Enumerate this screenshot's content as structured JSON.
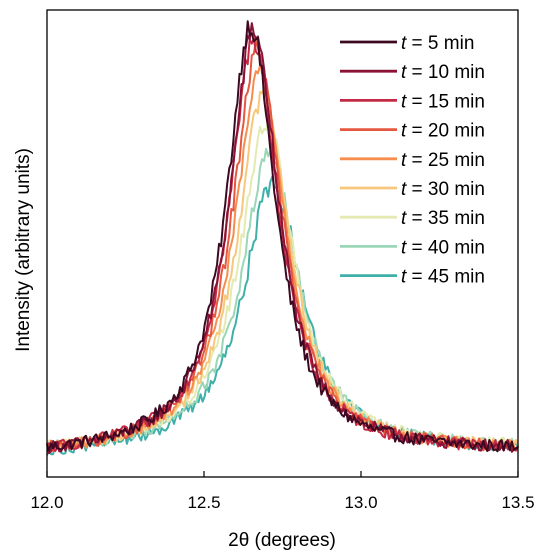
{
  "chart_data": {
    "type": "line",
    "xlabel": "2θ (degrees)",
    "ylabel": "Intensity (arbitrary units)",
    "xlim": [
      12.0,
      13.5
    ],
    "ylim": [
      0,
      1
    ],
    "x_ticks": [
      "12.0",
      "12.5",
      "13.0",
      "13.5"
    ],
    "y_ticks_labeled": false,
    "grid": false,
    "legend_position": "top-right",
    "legend_var": "t",
    "series": [
      {
        "name": "= 5 min",
        "color": "#3b0a22",
        "peak_x": 12.65,
        "peak_y": 0.96,
        "baseline": 0.045,
        "width": 0.095,
        "noise": 0.022
      },
      {
        "name": "= 10 min",
        "color": "#8a1234",
        "peak_x": 12.66,
        "peak_y": 0.95,
        "baseline": 0.045,
        "width": 0.096,
        "noise": 0.022
      },
      {
        "name": "= 15 min",
        "color": "#c42a45",
        "peak_x": 12.66,
        "peak_y": 0.93,
        "baseline": 0.045,
        "width": 0.097,
        "noise": 0.021
      },
      {
        "name": "= 20 min",
        "color": "#e5573e",
        "peak_x": 12.67,
        "peak_y": 0.9,
        "baseline": 0.046,
        "width": 0.098,
        "noise": 0.021
      },
      {
        "name": "= 25 min",
        "color": "#f58d4d",
        "peak_x": 12.68,
        "peak_y": 0.86,
        "baseline": 0.047,
        "width": 0.1,
        "noise": 0.02
      },
      {
        "name": "= 30 min",
        "color": "#f7c77c",
        "peak_x": 12.69,
        "peak_y": 0.81,
        "baseline": 0.048,
        "width": 0.103,
        "noise": 0.02
      },
      {
        "name": "= 35 min",
        "color": "#e4eab1",
        "peak_x": 12.7,
        "peak_y": 0.75,
        "baseline": 0.05,
        "width": 0.106,
        "noise": 0.02
      },
      {
        "name": "= 40 min",
        "color": "#9bd6b7",
        "peak_x": 12.71,
        "peak_y": 0.68,
        "baseline": 0.05,
        "width": 0.109,
        "noise": 0.02
      },
      {
        "name": "= 45 min",
        "color": "#3fb0a9",
        "peak_x": 12.72,
        "peak_y": 0.62,
        "baseline": 0.045,
        "width": 0.115,
        "noise": 0.022
      }
    ]
  }
}
